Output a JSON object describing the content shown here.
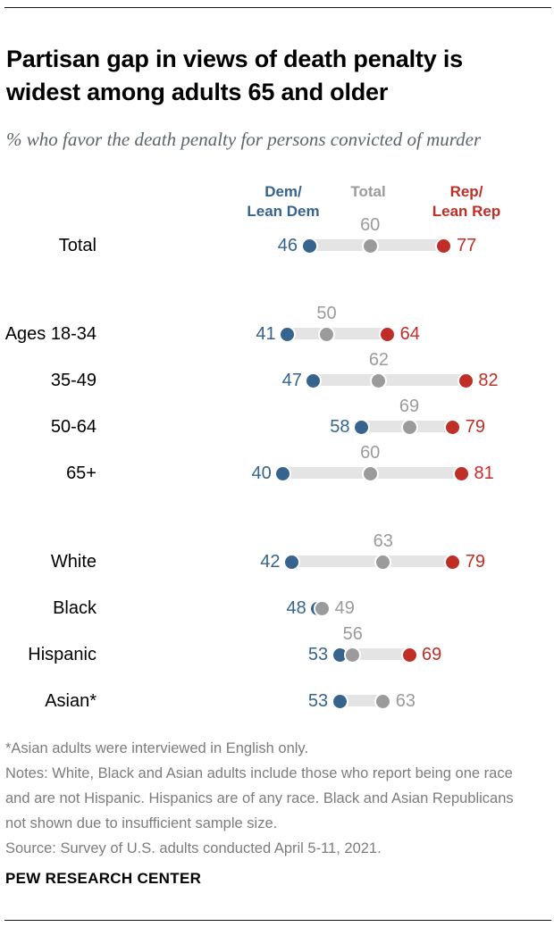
{
  "header": {
    "title": "Partisan gap in views of death penalty is widest among adults 65 and older",
    "subtitle": "% who favor the death penalty for persons convicted of murder"
  },
  "chart_data": {
    "type": "dumbbell-dot-plot",
    "unit": "% who favor",
    "value_range": [
      40,
      82
    ],
    "legend": {
      "dem": [
        "Dem/",
        "Lean Dem"
      ],
      "total": [
        "Total"
      ],
      "rep": [
        "Rep/",
        "Lean Rep"
      ]
    },
    "colors": {
      "dem": "#36648E",
      "total": "#9B9B9B",
      "rep": "#BF2E27",
      "bar": "#E4E4E4"
    },
    "rows": [
      {
        "label": "Total",
        "group": 0,
        "dem": 46,
        "total": 60,
        "rep": 77,
        "total_label_position": "above"
      },
      {
        "label": "Ages 18-34",
        "group": 1,
        "dem": 41,
        "total": 50,
        "rep": 64,
        "total_label_position": "above"
      },
      {
        "label": "35-49",
        "group": 1,
        "dem": 47,
        "total": 62,
        "rep": 82,
        "total_label_position": "above"
      },
      {
        "label": "50-64",
        "group": 1,
        "dem": 58,
        "total": 69,
        "rep": 79,
        "total_label_position": "above"
      },
      {
        "label": "65+",
        "group": 1,
        "dem": 40,
        "total": 60,
        "rep": 81,
        "total_label_position": "above"
      },
      {
        "label": "White",
        "group": 2,
        "dem": 42,
        "total": 63,
        "rep": 79,
        "total_label_position": "above"
      },
      {
        "label": "Black",
        "group": 2,
        "dem": 48,
        "total": 49,
        "rep": null,
        "total_label_position": "right"
      },
      {
        "label": "Hispanic",
        "group": 2,
        "dem": 53,
        "total": 56,
        "rep": 69,
        "total_label_position": "above"
      },
      {
        "label": "Asian*",
        "group": 2,
        "dem": 53,
        "total": 63,
        "rep": null,
        "total_label_position": "right"
      }
    ]
  },
  "footnotes": {
    "asterisk": "*Asian adults were interviewed in English only.",
    "notes": "Notes: White, Black and Asian adults include those who report being one race and are not Hispanic. Hispanics are of any race. Black and Asian Republicans not shown due to insufficient sample size.",
    "source": "Source: Survey of U.S. adults conducted April 5-11, 2021."
  },
  "footer": {
    "brand": "PEW RESEARCH CENTER"
  }
}
